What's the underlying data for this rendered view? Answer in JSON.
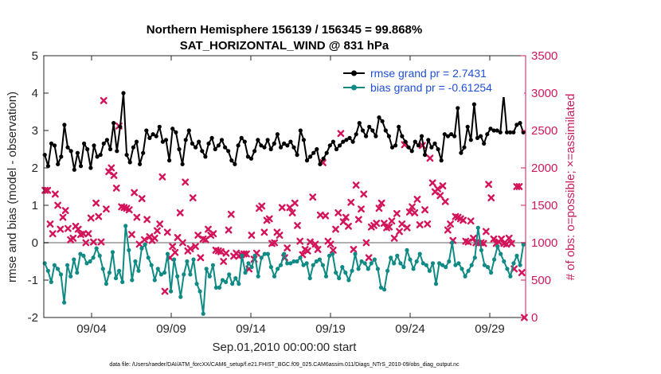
{
  "chart_data": {
    "type": "line",
    "title": "Northern Hemisphere 156139 / 156345 = 99.868%",
    "subtitle": "SAT_HORIZONTAL_WIND @ 831 hPa",
    "xlabel": "Sep.01,2010 00:00:00 start",
    "ylabel_left": "rmse and bias (model - observation)",
    "ylabel_right": "# of obs: o=possible; ×=assimilated",
    "footnote": "data file: /Users/raeder/DAI/ATM_forcXX/CAM6_setup/f.e21.FHIST_BGC.f09_025.CAM6assim.011/Diags_NTrS_2010-09/obs_diag_output.nc",
    "x_ticks": [
      {
        "day": 4,
        "label": "09/04"
      },
      {
        "day": 9,
        "label": "09/09"
      },
      {
        "day": 14,
        "label": "09/14"
      },
      {
        "day": 19,
        "label": "09/19"
      },
      {
        "day": 24,
        "label": "09/24"
      },
      {
        "day": 29,
        "label": "09/29"
      }
    ],
    "xlim": [
      1.0,
      31.25
    ],
    "ylim_left": [
      -2,
      5
    ],
    "yticks_left": [
      "-2",
      "-1",
      "0",
      "1",
      "2",
      "3",
      "4",
      "5"
    ],
    "ylim_right": [
      0,
      3500
    ],
    "yticks_right": [
      "0",
      "500",
      "1000",
      "1500",
      "2000",
      "2500",
      "3000",
      "3500"
    ],
    "colors": {
      "rmse": "#000000",
      "bias": "#0f8a84",
      "obs": "#d4145a",
      "zero": "#b0b0b0",
      "legend_text": "#1f4fd6",
      "right_axis": "#cc1a5c"
    },
    "series": [
      {
        "name": "rmse grand pr = 2.7431",
        "values": [
          2.35,
          2.05,
          2.65,
          2.6,
          2.1,
          2.3,
          3.15,
          2.55,
          2.45,
          1.95,
          2.4,
          2.05,
          2.65,
          2.5,
          2.0,
          2.6,
          2.3,
          2.35,
          2.65,
          2.75,
          2.5,
          3.2,
          2.45,
          3.1,
          4.0,
          2.35,
          2.15,
          2.55,
          2.7,
          2.1,
          2.4,
          3.0,
          2.8,
          2.9,
          2.85,
          3.1,
          2.7,
          2.75,
          2.2,
          3.05,
          2.95,
          2.5,
          2.1,
          2.75,
          3.0,
          2.65,
          2.55,
          2.7,
          2.45,
          2.3,
          2.65,
          2.8,
          2.5,
          2.6,
          2.75,
          2.55,
          2.45,
          2.2,
          2.1,
          2.6,
          2.8,
          2.7,
          2.3,
          2.25,
          2.45,
          2.75,
          2.6,
          2.55,
          2.75,
          2.5,
          2.65,
          2.9,
          2.55,
          2.65,
          2.6,
          2.7,
          2.55,
          2.35,
          3.0,
          2.75,
          2.2,
          2.3,
          2.4,
          2.5,
          2.1,
          2.25,
          2.4,
          2.6,
          2.7,
          2.5,
          2.6,
          2.7,
          2.75,
          2.8,
          2.7,
          2.9,
          3.2,
          3.0,
          2.85,
          3.1,
          3.0,
          2.85,
          3.35,
          3.25,
          3.0,
          2.85,
          2.55,
          2.6,
          3.1,
          2.85,
          2.7,
          2.55,
          2.45,
          2.7,
          2.6,
          2.85,
          2.35,
          2.75,
          2.55,
          2.65,
          2.5,
          2.2,
          2.9,
          2.85,
          2.9,
          2.85,
          3.6,
          2.4,
          2.55,
          3.1,
          2.75,
          3.7,
          2.8,
          2.85,
          2.65,
          2.9,
          3.05,
          3.0,
          3.0,
          2.95,
          3.95,
          2.95,
          2.95,
          2.95,
          3.15,
          3.2,
          2.95
        ],
        "color": "#000000"
      },
      {
        "name": "bias grand pr = -0.61254",
        "values": [
          -0.55,
          -0.75,
          -1.05,
          -0.6,
          -0.7,
          -0.85,
          -1.6,
          -0.6,
          -0.9,
          -0.45,
          -0.8,
          -0.3,
          -0.35,
          -0.55,
          -0.5,
          -0.4,
          -0.15,
          -0.35,
          -0.7,
          -1.1,
          -0.8,
          -0.25,
          -0.95,
          -0.75,
          -1.05,
          0.45,
          -0.2,
          -1.0,
          -0.5,
          -0.75,
          -0.15,
          -0.05,
          -0.4,
          -0.6,
          -1.0,
          -0.7,
          -0.85,
          -0.8,
          -0.3,
          -1.3,
          -0.45,
          -0.9,
          -1.45,
          -0.85,
          -0.5,
          -0.85,
          -0.45,
          -1.1,
          -1.3,
          -1.9,
          -0.7,
          -0.9,
          -0.6,
          -1.2,
          -1.2,
          -1.0,
          -1.05,
          -0.85,
          -1.1,
          -0.95,
          -1.1,
          -0.35,
          -0.8,
          -0.55,
          -0.65,
          -0.35,
          -0.9,
          -0.4,
          -0.3,
          -0.3,
          -0.65,
          -0.9,
          -0.7,
          -0.6,
          -0.3,
          -0.55,
          -0.55,
          -0.5,
          -0.5,
          -0.4,
          -0.6,
          -0.55,
          -0.95,
          -0.6,
          -0.5,
          -0.45,
          -0.6,
          -0.9,
          -0.35,
          -0.3,
          -0.8,
          -0.95,
          -0.65,
          -0.8,
          -1.0,
          -0.75,
          -0.3,
          -0.7,
          -0.5,
          -0.55,
          -0.7,
          -0.55,
          -0.45,
          -0.7,
          -1.2,
          -1.25,
          -0.75,
          -0.4,
          -0.55,
          -0.35,
          -0.55,
          -0.65,
          -0.2,
          -0.45,
          -0.7,
          -0.5,
          -0.3,
          -0.55,
          -0.6,
          -0.75,
          -0.55,
          -1.1,
          -0.55,
          -0.6,
          -0.65,
          -0.5,
          0.0,
          -0.6,
          -0.55,
          -0.7,
          -0.9,
          -0.75,
          -0.6,
          -0.4,
          0.4,
          -0.2,
          -0.6,
          -0.65,
          -0.8,
          -0.45,
          -0.1,
          -0.3,
          -0.5,
          -0.7,
          -0.9,
          -0.55,
          -0.35,
          -0.6,
          -0.05
        ],
        "color": "#0f8a84"
      }
    ],
    "assimilated_counts": [
      1700,
      1700,
      1250,
      1120,
      1650,
      1500,
      1180,
      1340,
      1430,
      1190,
      1040,
      1060,
      1220,
      1180,
      1110,
      1120,
      1000,
      1120,
      1330,
      1010,
      1530,
      1350,
      1010,
      2900,
      1450,
      1950,
      2000,
      1900,
      1730,
      2560,
      1480,
      1470,
      1460,
      1440,
      1110,
      1670,
      1340,
      980,
      1590,
      1040,
      1310,
      1080,
      1030,
      1060,
      1160,
      1250,
      1880,
      350,
      1140,
      800,
      950,
      870,
      1070,
      1400,
      1000,
      1810,
      890,
      920,
      1600,
      950,
      1100,
      800,
      1050,
      1040,
      1180,
      1100,
      1120,
      900,
      890,
      880,
      750,
      860,
      1170,
      1380,
      820,
      860,
      820,
      840,
      850,
      850,
      650,
      1100,
      780,
      860,
      1460,
      1490,
      1140,
      1300,
      1320,
      990,
      1000,
      1140,
      1100,
      1470,
      800,
      930,
      1470,
      1400,
      1530,
      1230,
      1020,
      840,
      910,
      890,
      1010,
      1610,
      980,
      910,
      1370,
      2070,
      1360,
      1020,
      980,
      900,
      1180,
      1400,
      2460,
      1280,
      1340,
      1220,
      1540,
      910,
      1770,
      1310,
      1450,
      1650,
      1000,
      800,
      1210,
      1230,
      1260,
      1460,
      1530,
      1260,
      1200,
      1210,
      1290,
      1060,
      1390,
      1150,
      1250,
      2310,
      1200,
      1410,
      1480,
      1400,
      1580,
      1240,
      2300,
      1440,
      1250,
      2130,
      1800,
      1680,
      1720,
      1630,
      1760,
      1550,
      1170,
      1250,
      1030,
      1350,
      1340,
      1320,
      1300,
      1020,
      1010,
      1290,
      1060,
      1000,
      990,
      1000,
      990,
      1150,
      1780,
      1600,
      1050,
      990,
      1010,
      1050,
      990,
      980,
      1060,
      990,
      650,
      1750,
      1750,
      600,
      0
    ],
    "legend_location": "top-right"
  }
}
